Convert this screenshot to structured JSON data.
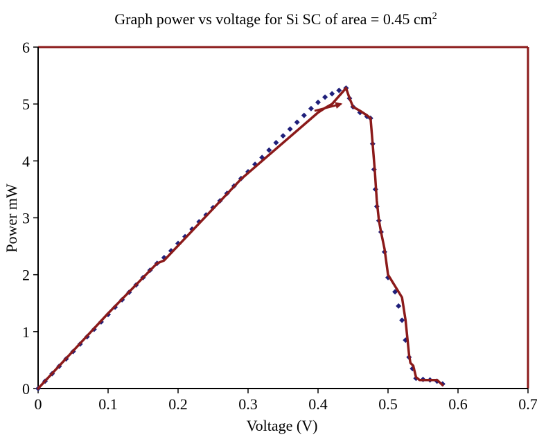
{
  "chart_data": {
    "type": "line",
    "title_main": "Graph power vs voltage for Si SC of area = 0.45 cm",
    "title_superscript": "2",
    "xlabel": "Voltage (V)",
    "ylabel": "Power mW",
    "xlim": [
      0,
      0.7
    ],
    "ylim": [
      0,
      6
    ],
    "x_ticks": [
      "0",
      "0.1",
      "0.2",
      "0.3",
      "0.4",
      "0.5",
      "0.6",
      "0.7"
    ],
    "y_ticks": [
      "0",
      "1",
      "2",
      "3",
      "4",
      "5",
      "6"
    ],
    "grid": false,
    "legend": "none",
    "colors": {
      "line": "#8b1a1a",
      "markers": "#1f1f7a",
      "frame": "#8b1a1a"
    },
    "series": [
      {
        "style": "markers",
        "x": [
          0.0,
          0.01,
          0.02,
          0.03,
          0.04,
          0.05,
          0.06,
          0.07,
          0.08,
          0.09,
          0.1,
          0.11,
          0.12,
          0.13,
          0.14,
          0.15,
          0.16,
          0.17,
          0.18,
          0.19,
          0.2,
          0.21,
          0.22,
          0.23,
          0.24,
          0.25,
          0.26,
          0.27,
          0.28,
          0.29,
          0.3,
          0.31,
          0.32,
          0.33,
          0.34,
          0.35,
          0.36,
          0.37,
          0.38,
          0.39,
          0.4,
          0.41,
          0.42,
          0.43,
          0.44,
          0.445,
          0.45,
          0.46,
          0.47,
          0.475,
          0.478,
          0.48,
          0.482,
          0.484,
          0.487,
          0.49,
          0.495,
          0.5,
          0.51,
          0.515,
          0.52,
          0.525,
          0.53,
          0.535,
          0.54,
          0.55,
          0.56,
          0.57,
          0.578
        ],
        "y": [
          0.0,
          0.13,
          0.26,
          0.39,
          0.52,
          0.65,
          0.78,
          0.91,
          1.04,
          1.17,
          1.3,
          1.43,
          1.56,
          1.69,
          1.82,
          1.95,
          2.08,
          2.2,
          2.3,
          2.42,
          2.55,
          2.67,
          2.8,
          2.93,
          3.05,
          3.18,
          3.3,
          3.43,
          3.56,
          3.69,
          3.81,
          3.94,
          4.06,
          4.19,
          4.32,
          4.44,
          4.56,
          4.68,
          4.8,
          4.92,
          5.03,
          5.12,
          5.18,
          5.24,
          5.28,
          5.1,
          4.95,
          4.85,
          4.78,
          4.75,
          4.3,
          3.85,
          3.5,
          3.2,
          2.95,
          2.75,
          2.4,
          1.95,
          1.7,
          1.45,
          1.2,
          0.85,
          0.55,
          0.35,
          0.18,
          0.16,
          0.15,
          0.13,
          0.08
        ]
      },
      {
        "style": "line",
        "x": [
          0.0,
          0.1,
          0.17,
          0.18,
          0.28,
          0.29,
          0.4,
          0.41,
          0.42,
          0.44,
          0.445,
          0.45,
          0.46,
          0.47,
          0.475,
          0.478,
          0.481,
          0.484,
          0.487,
          0.49,
          0.495,
          0.5,
          0.505,
          0.52,
          0.525,
          0.53,
          0.532,
          0.536,
          0.54,
          0.545,
          0.55,
          0.57,
          0.578
        ],
        "y": [
          0.0,
          1.32,
          2.2,
          2.25,
          3.55,
          3.68,
          4.85,
          4.93,
          5.0,
          5.28,
          5.1,
          4.95,
          4.88,
          4.8,
          4.75,
          4.3,
          3.85,
          3.3,
          2.95,
          2.75,
          2.45,
          2.0,
          1.9,
          1.6,
          1.2,
          0.6,
          0.45,
          0.4,
          0.2,
          0.15,
          0.15,
          0.15,
          0.06
        ]
      }
    ],
    "annotations": [
      {
        "type": "arrow",
        "x_from": 0.395,
        "y_from": 4.88,
        "x_to": 0.433,
        "y_to": 5.0
      }
    ]
  }
}
